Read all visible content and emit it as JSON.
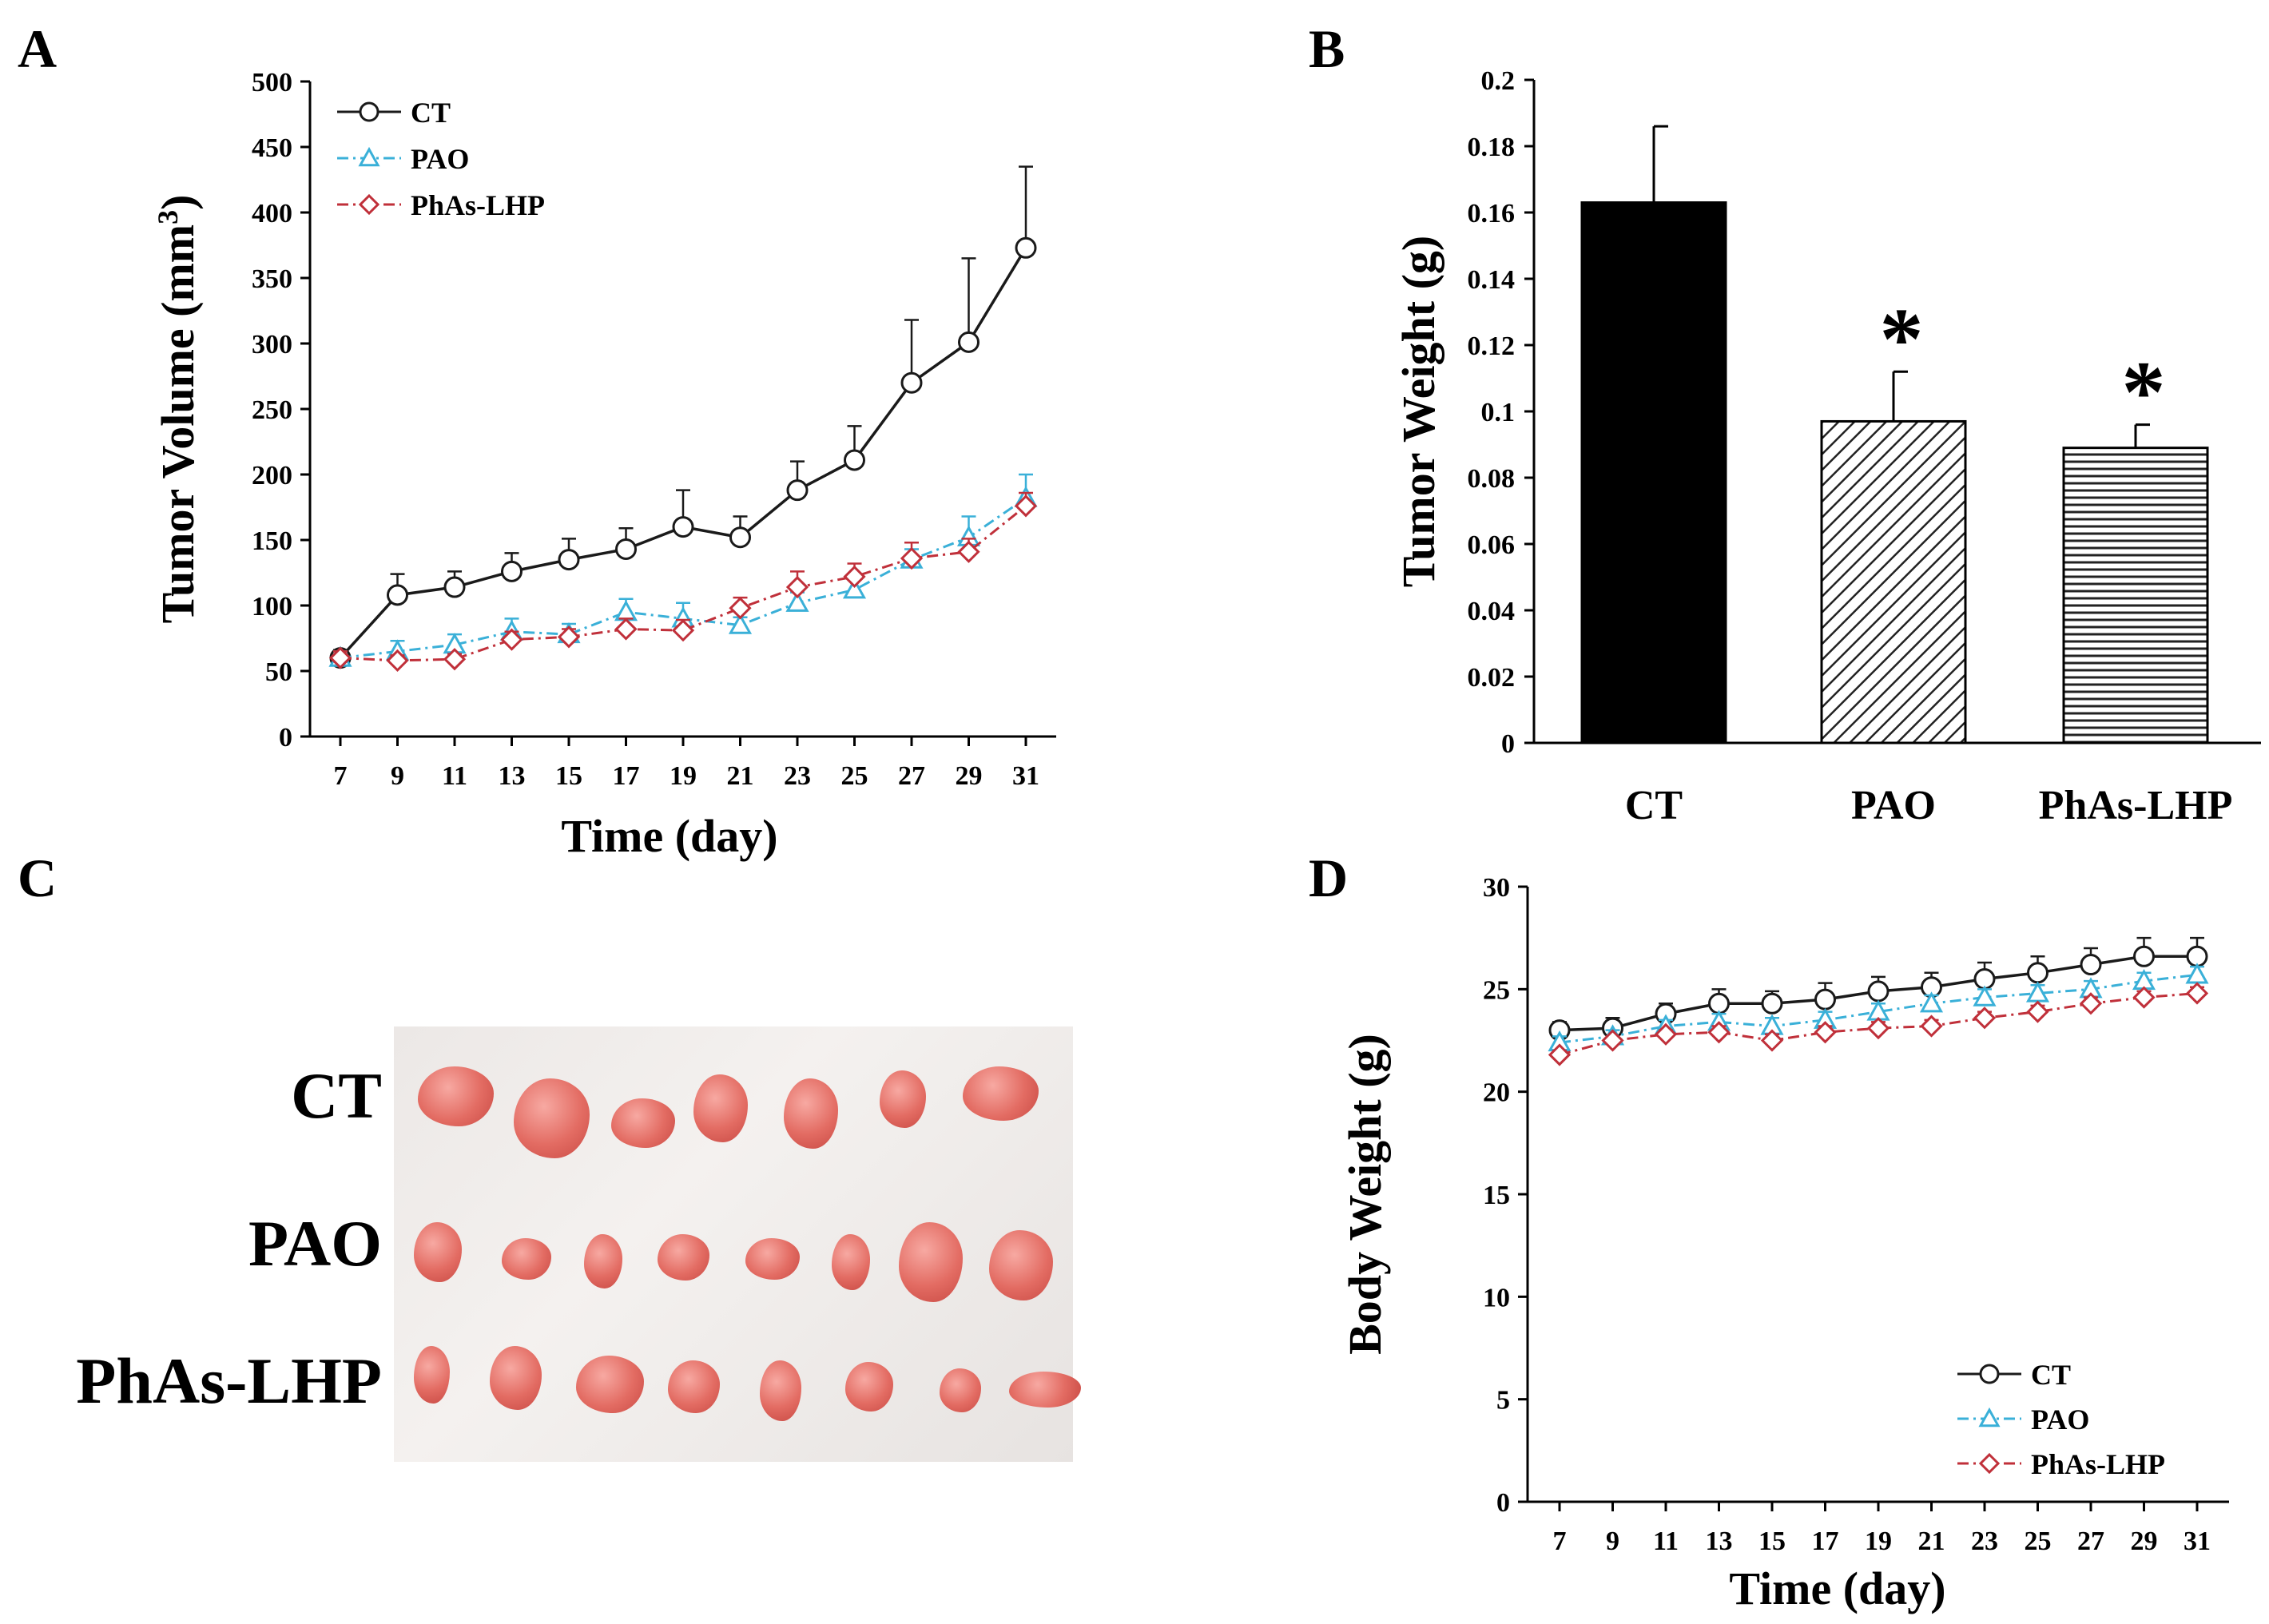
{
  "panels": {
    "a": {
      "letter": "A"
    },
    "b": {
      "letter": "B"
    },
    "c": {
      "letter": "C",
      "row_labels": [
        "CT",
        "PAO",
        "PhAs-LHP"
      ]
    },
    "d": {
      "letter": "D"
    }
  },
  "colors": {
    "ct": "#1a1a1a",
    "pao": "#3ab0d8",
    "phas": "#c0303a"
  },
  "chart_data": [
    {
      "id": "A",
      "type": "line",
      "title": "",
      "xlabel": "Time (day)",
      "ylabel": "Tumor Volume (mm3)",
      "ylabel_main": "Tumor Volume (mm",
      "ylabel_sup": "3",
      "ylabel_end": ")",
      "x": [
        7,
        9,
        11,
        13,
        15,
        17,
        19,
        21,
        23,
        25,
        27,
        29,
        31
      ],
      "ylim": [
        0,
        500
      ],
      "yticks": [
        0,
        50,
        100,
        150,
        200,
        250,
        300,
        350,
        400,
        450,
        500
      ],
      "legend_position": "top-left",
      "series": [
        {
          "name": "CT",
          "marker": "circle",
          "line": "solid",
          "values": [
            60,
            108,
            114,
            126,
            135,
            143,
            160,
            152,
            188,
            211,
            270,
            301,
            373
          ],
          "errors": [
            6,
            16,
            12,
            14,
            16,
            16,
            28,
            16,
            22,
            26,
            48,
            64,
            62
          ]
        },
        {
          "name": "PAO",
          "marker": "triangle",
          "line": "dashdot",
          "values": [
            60,
            65,
            70,
            80,
            78,
            95,
            90,
            85,
            102,
            112,
            135,
            152,
            182
          ],
          "errors": [
            5,
            8,
            8,
            10,
            8,
            10,
            12,
            6,
            8,
            8,
            8,
            16,
            18
          ]
        },
        {
          "name": "PhAs-LHP",
          "marker": "diamond",
          "line": "dashdot",
          "values": [
            60,
            58,
            59,
            74,
            76,
            82,
            81,
            98,
            114,
            122,
            136,
            141,
            176
          ],
          "errors": [
            5,
            4,
            4,
            6,
            6,
            8,
            8,
            8,
            12,
            10,
            12,
            10,
            10
          ]
        }
      ]
    },
    {
      "id": "B",
      "type": "bar",
      "title": "",
      "xlabel": "",
      "ylabel": "Tumor Weight (g)",
      "categories": [
        "CT",
        "PAO",
        "PhAs-LHP"
      ],
      "values": [
        0.163,
        0.097,
        0.089
      ],
      "errors": [
        0.023,
        0.015,
        0.007
      ],
      "significance": [
        "",
        "*",
        "*"
      ],
      "fills": [
        "solid",
        "diagonal",
        "horizontal"
      ],
      "ylim": [
        0,
        0.2
      ],
      "yticks": [
        "0",
        "0.02",
        "0.04",
        "0.06",
        "0.08",
        "0.1",
        "0.12",
        "0.14",
        "0.16",
        "0.18",
        "0.2"
      ]
    },
    {
      "id": "D",
      "type": "line",
      "title": "",
      "xlabel": "Time (day)",
      "ylabel": "Body Weight (g)",
      "x": [
        7,
        9,
        11,
        13,
        15,
        17,
        19,
        21,
        23,
        25,
        27,
        29,
        31
      ],
      "ylim": [
        0,
        30
      ],
      "yticks": [
        0,
        5,
        10,
        15,
        20,
        25,
        30
      ],
      "legend_position": "bottom-right",
      "series": [
        {
          "name": "CT",
          "marker": "circle",
          "line": "solid",
          "values": [
            23.0,
            23.1,
            23.8,
            24.3,
            24.3,
            24.5,
            24.9,
            25.1,
            25.5,
            25.8,
            26.2,
            26.6,
            26.6
          ],
          "errors": [
            0.4,
            0.5,
            0.5,
            0.7,
            0.6,
            0.8,
            0.7,
            0.7,
            0.8,
            0.8,
            0.8,
            0.9,
            0.9
          ]
        },
        {
          "name": "PAO",
          "marker": "triangle",
          "line": "dashdot",
          "values": [
            22.4,
            22.7,
            23.2,
            23.4,
            23.2,
            23.5,
            23.9,
            24.3,
            24.6,
            24.8,
            25.0,
            25.4,
            25.7
          ],
          "errors": [
            0.3,
            0.3,
            0.3,
            0.4,
            0.4,
            0.4,
            0.4,
            0.4,
            0.4,
            0.4,
            0.4,
            0.4,
            0.4
          ]
        },
        {
          "name": "PhAs-LHP",
          "marker": "diamond",
          "line": "dashdot",
          "values": [
            21.8,
            22.5,
            22.8,
            22.9,
            22.5,
            22.9,
            23.1,
            23.2,
            23.6,
            23.9,
            24.3,
            24.6,
            24.8
          ],
          "errors": [
            0.2,
            0.2,
            0.2,
            0.3,
            0.3,
            0.3,
            0.3,
            0.3,
            0.3,
            0.3,
            0.3,
            0.3,
            0.3
          ]
        }
      ]
    }
  ]
}
